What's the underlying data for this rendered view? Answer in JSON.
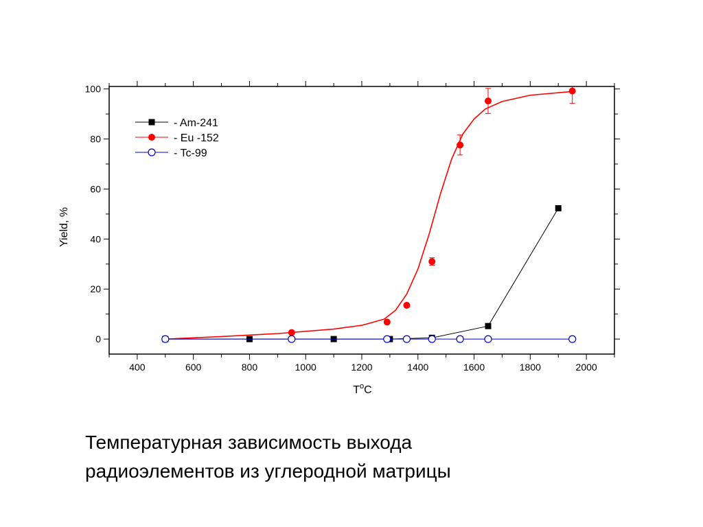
{
  "chart_data": {
    "type": "line",
    "title": "",
    "xlabel_main": "T",
    "xlabel_sup": "o",
    "xlabel_unit": "C",
    "ylabel": "Yield, %",
    "xlim": [
      300,
      2100
    ],
    "ylim": [
      -6,
      101
    ],
    "xticks": [
      400,
      600,
      800,
      1000,
      1200,
      1400,
      1600,
      1800,
      2000
    ],
    "yticks": [
      0,
      20,
      40,
      60,
      80,
      100
    ],
    "grid": false,
    "legend_position": "top-left",
    "series": [
      {
        "name": "- Am-241",
        "color": "#000000",
        "marker": "square-filled",
        "x": [
          500,
          800,
          1100,
          1300,
          1450,
          1650,
          1900
        ],
        "y": [
          0,
          0,
          0,
          0,
          0.5,
          5.2,
          52.3
        ]
      },
      {
        "name": "- Eu -152",
        "color": "#ff0000",
        "marker": "circle-filled",
        "x": [
          500,
          950,
          1290,
          1360,
          1450,
          1550,
          1650,
          1950
        ],
        "y": [
          0,
          2.6,
          6.8,
          13.5,
          31.0,
          77.6,
          95.2,
          99.2
        ],
        "error": [
          0,
          0,
          0,
          0,
          1.5,
          4.0,
          5.0,
          5.0
        ],
        "fit_curve": {
          "x": [
            500,
            700,
            900,
            1100,
            1200,
            1280,
            1320,
            1360,
            1400,
            1440,
            1480,
            1520,
            1560,
            1600,
            1640,
            1700,
            1800,
            1950
          ],
          "y": [
            0,
            1.0,
            2.2,
            4.0,
            5.5,
            8.0,
            11.5,
            18.0,
            28.0,
            42.0,
            58.0,
            72.0,
            82.0,
            88.0,
            92.0,
            95.0,
            97.5,
            99.0
          ]
        }
      },
      {
        "name": "- Tc-99",
        "color": "#0000cc",
        "marker": "circle-open",
        "x": [
          500,
          950,
          1290,
          1360,
          1450,
          1550,
          1650,
          1950
        ],
        "y": [
          0,
          0,
          0,
          0,
          0,
          0,
          0,
          0
        ]
      }
    ]
  },
  "caption": {
    "line1": "Температурная зависимость выхода",
    "line2": "радиоэлементов из углеродной матрицы"
  }
}
